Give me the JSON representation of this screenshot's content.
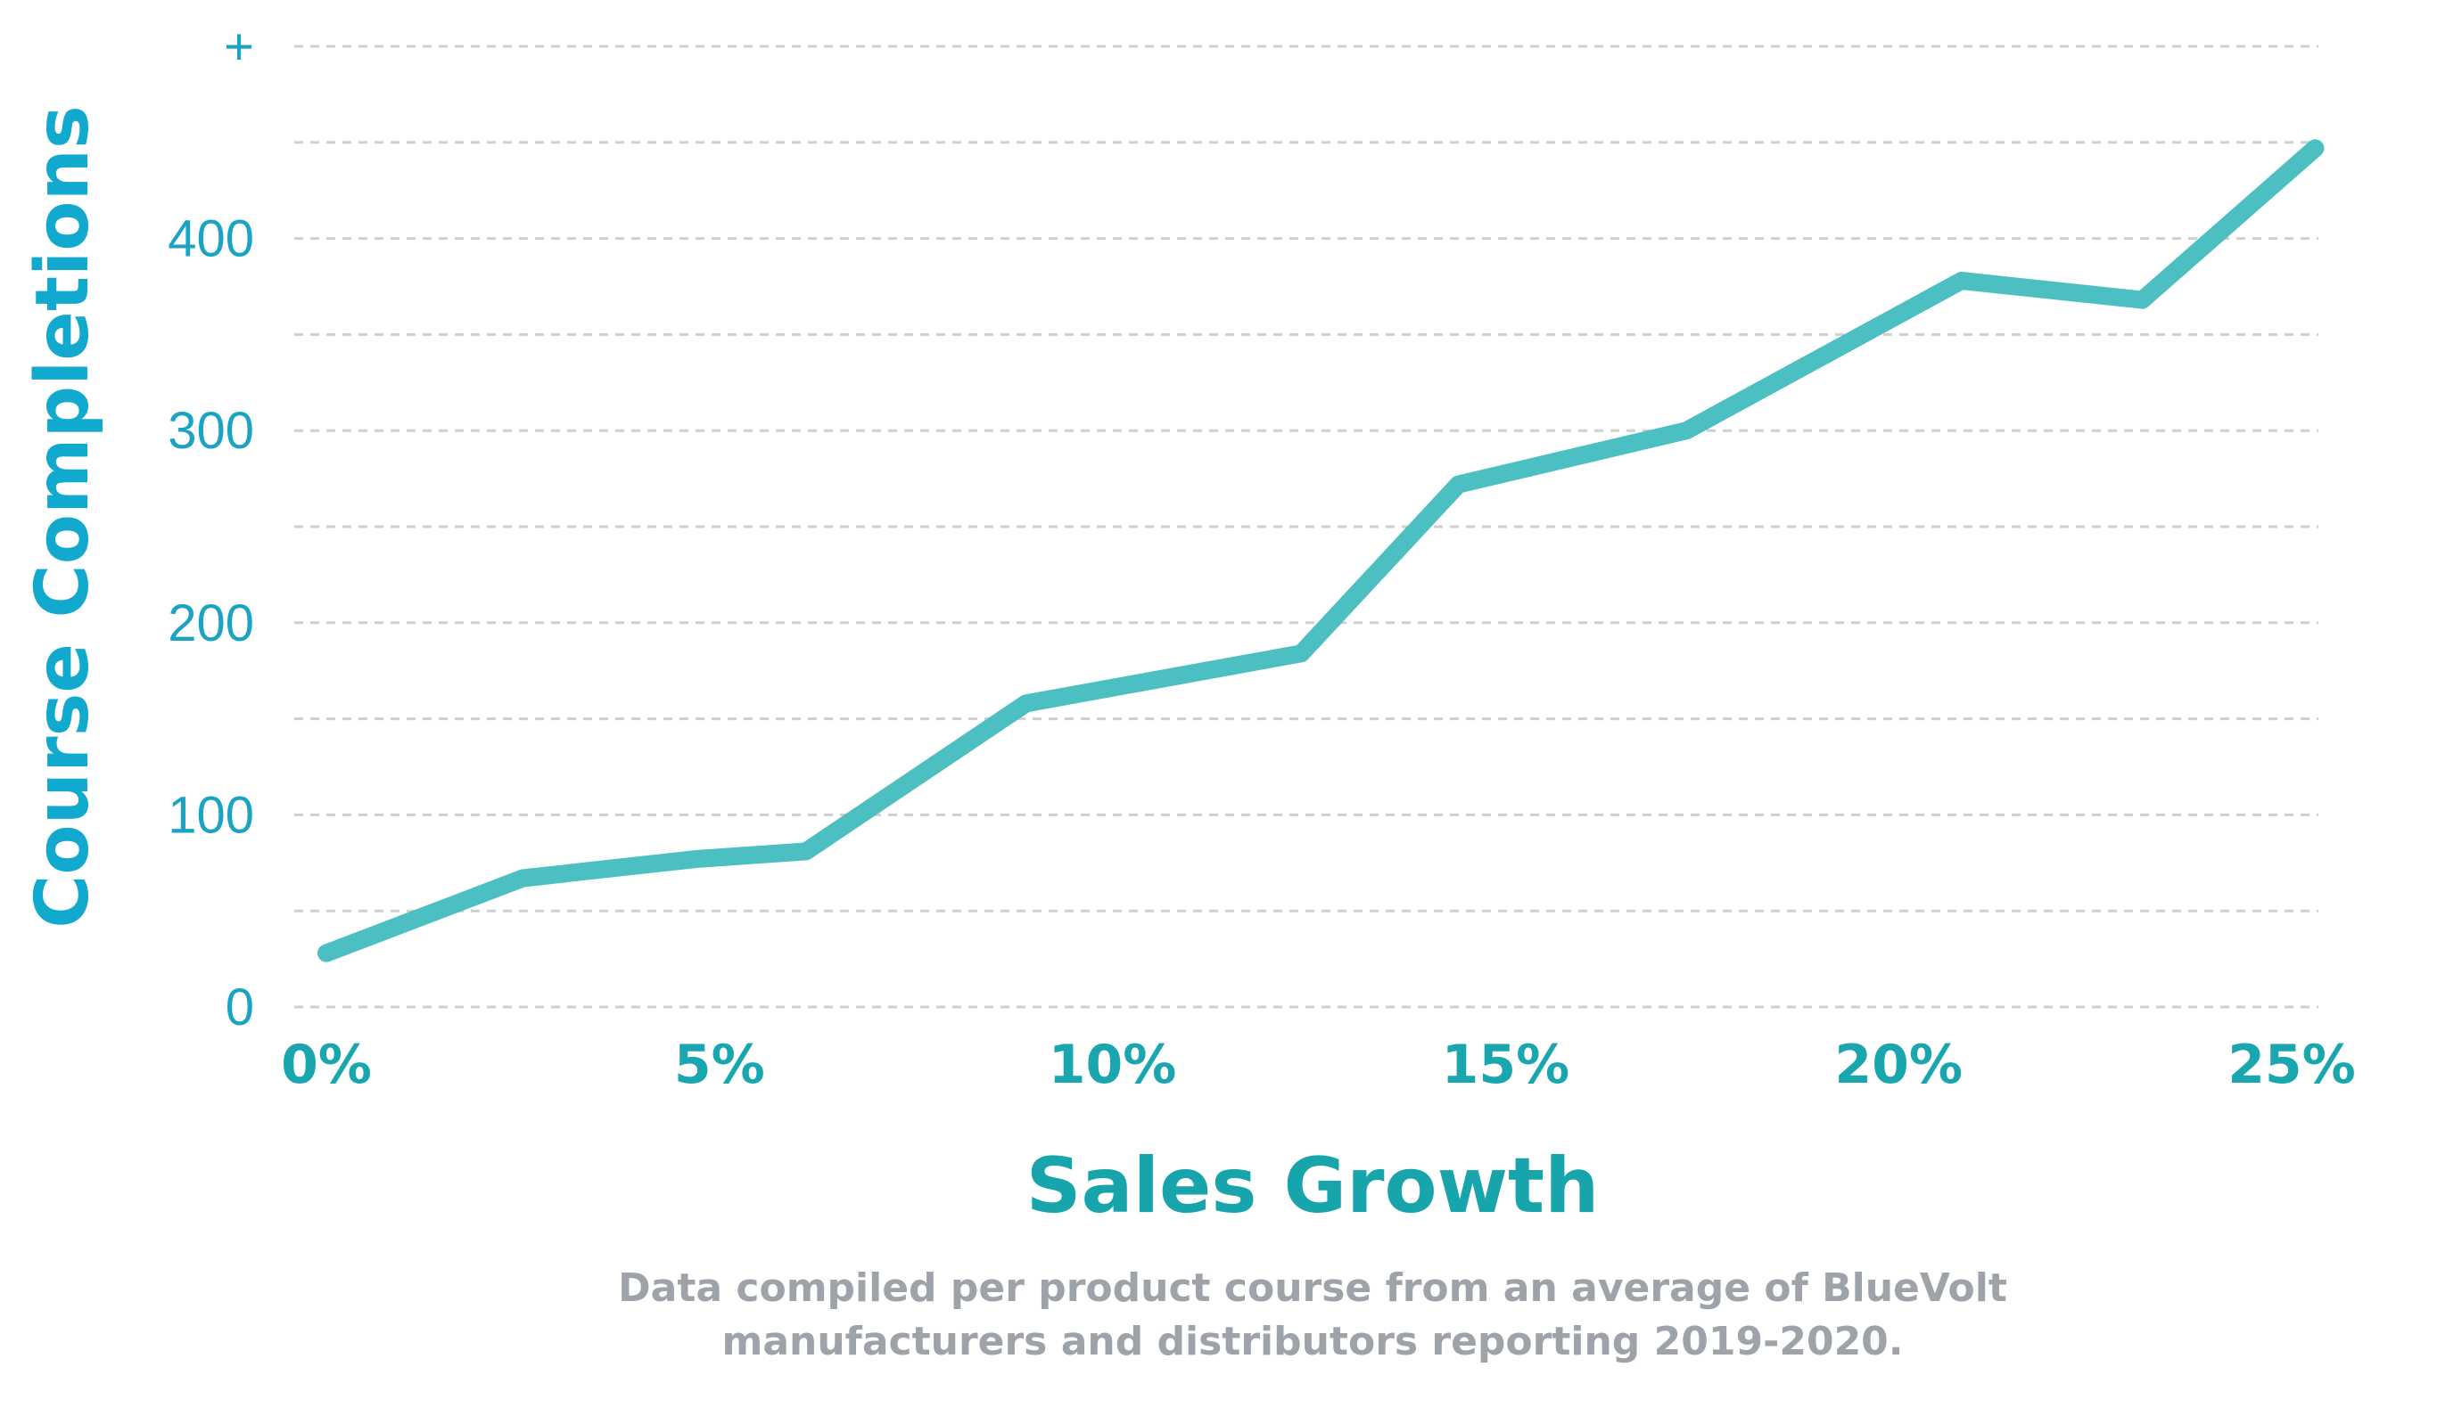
{
  "chart_data": {
    "type": "line",
    "xlabel": "Sales Growth",
    "ylabel": "Course Completions",
    "x_tick_labels": [
      "0%",
      "5%",
      "10%",
      "15%",
      "20%",
      "25%"
    ],
    "x_ticks": [
      0,
      5,
      10,
      15,
      20,
      25
    ],
    "y_tick_labels": [
      "0",
      "100",
      "200",
      "300",
      "400",
      "+"
    ],
    "y_ticks": [
      0,
      100,
      200,
      300,
      400,
      500
    ],
    "xlim": [
      0,
      25
    ],
    "ylim": [
      0,
      500
    ],
    "grid": true,
    "series": [
      {
        "x": [
          0,
          2.5,
          4.7,
          6.1,
          8.9,
          12.4,
          14.4,
          17.3,
          20.8,
          23.1,
          25.3
        ],
        "y": [
          28,
          67,
          77,
          81,
          158,
          184,
          272,
          300,
          378,
          368,
          447
        ],
        "color": "#4bbfc2"
      }
    ],
    "footnote": [
      "Data compiled per product course from an average of BlueVolt",
      "manufacturers and distributors reporting 2019-2020."
    ]
  }
}
